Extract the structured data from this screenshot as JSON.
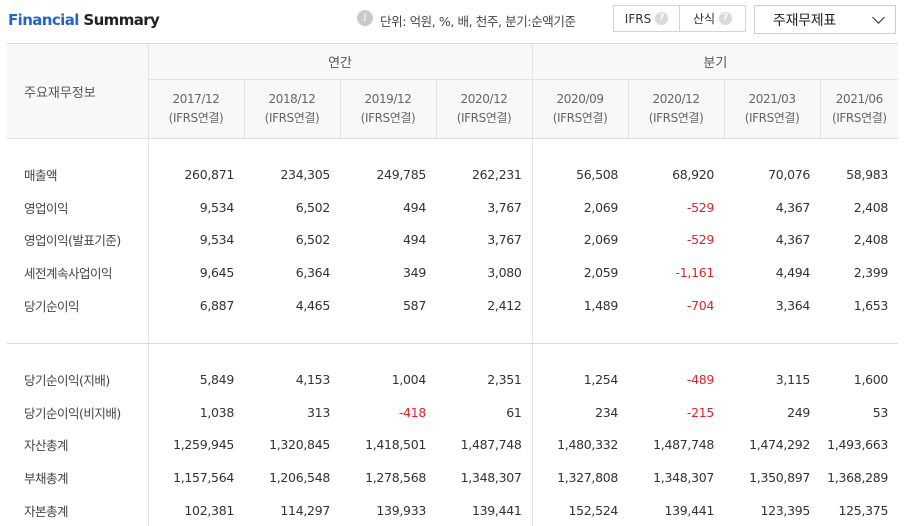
{
  "header": {
    "title_accent": "Financial",
    "title_rest": " Summary",
    "unit_text": "단위: 억원, %, 배, 천주, 분기:순액기준",
    "ifrs_label": "IFRS",
    "calc_label": "산식",
    "dropdown_label": "주재무제표"
  },
  "table": {
    "row_header": "주요재무정보",
    "group_annual": "연간",
    "group_quarter": "분기",
    "periods": [
      {
        "date": "2017/12",
        "basis": "(IFRS연결)"
      },
      {
        "date": "2018/12",
        "basis": "(IFRS연결)"
      },
      {
        "date": "2019/12",
        "basis": "(IFRS연결)"
      },
      {
        "date": "2020/12",
        "basis": "(IFRS연결)"
      },
      {
        "date": "2020/09",
        "basis": "(IFRS연결)"
      },
      {
        "date": "2020/12",
        "basis": "(IFRS연결)"
      },
      {
        "date": "2021/03",
        "basis": "(IFRS연결)"
      },
      {
        "date": "2021/06",
        "basis": "(IFRS연결)"
      }
    ],
    "rows_top": [
      {
        "label": "매출액",
        "values": [
          "260,871",
          "234,305",
          "249,785",
          "262,231",
          "56,508",
          "68,920",
          "70,076",
          "58,983"
        ]
      },
      {
        "label": "영업이익",
        "values": [
          "9,534",
          "6,502",
          "494",
          "3,767",
          "2,069",
          "-529",
          "4,367",
          "2,408"
        ]
      },
      {
        "label": "영업이익(발표기준)",
        "values": [
          "9,534",
          "6,502",
          "494",
          "3,767",
          "2,069",
          "-529",
          "4,367",
          "2,408"
        ]
      },
      {
        "label": "세전계속사업이익",
        "values": [
          "9,645",
          "6,364",
          "349",
          "3,080",
          "2,059",
          "-1,161",
          "4,494",
          "2,399"
        ]
      },
      {
        "label": "당기순이익",
        "values": [
          "6,887",
          "4,465",
          "587",
          "2,412",
          "1,489",
          "-704",
          "3,364",
          "1,653"
        ]
      }
    ],
    "rows_bottom": [
      {
        "label": "당기순이익(지배)",
        "values": [
          "5,849",
          "4,153",
          "1,004",
          "2,351",
          "1,254",
          "-489",
          "3,115",
          "1,600"
        ]
      },
      {
        "label": "당기순이익(비지배)",
        "values": [
          "1,038",
          "313",
          "-418",
          "61",
          "234",
          "-215",
          "249",
          "53"
        ]
      },
      {
        "label": "자산총계",
        "values": [
          "1,259,945",
          "1,320,845",
          "1,418,501",
          "1,487,748",
          "1,480,332",
          "1,487,748",
          "1,474,292",
          "1,493,663"
        ]
      },
      {
        "label": "부채총계",
        "values": [
          "1,157,564",
          "1,206,548",
          "1,278,568",
          "1,348,307",
          "1,327,808",
          "1,348,307",
          "1,350,897",
          "1,368,289"
        ]
      },
      {
        "label": "자본총계",
        "values": [
          "102,381",
          "114,297",
          "139,933",
          "139,441",
          "152,524",
          "139,441",
          "123,395",
          "125,375"
        ]
      }
    ]
  },
  "colors": {
    "accent": "#2764c8",
    "negative": "#e0262c"
  }
}
